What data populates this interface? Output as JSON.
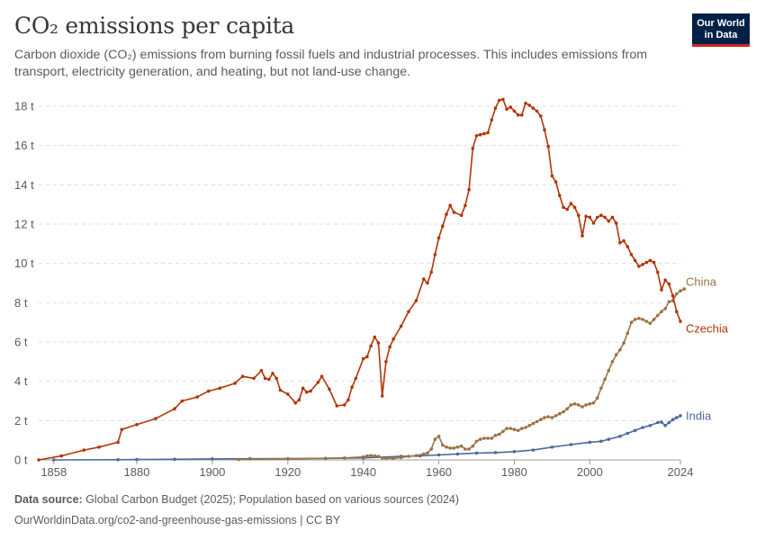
{
  "header": {
    "title": "CO₂ emissions per capita",
    "subtitle": "Carbon dioxide (CO₂) emissions from burning fossil fuels and industrial processes. This includes emissions from transport, electricity generation, and heating, but not land-use change.",
    "logo_line1": "Our World",
    "logo_line2": "in Data"
  },
  "footer": {
    "source_label": "Data source:",
    "source_text": " Global Carbon Budget (2025); Population based on various sources (2024)",
    "url_text": "OurWorldinData.org/co2-and-greenhouse-gas-emissions | CC BY"
  },
  "colors": {
    "czechia": "#b13507",
    "china": "#9a7445",
    "india": "#4c6a9c",
    "grid": "#dddddd",
    "brand": "#002147",
    "brand_accent": "#ce261e"
  },
  "chart_data": {
    "type": "line",
    "title": "CO₂ emissions per capita",
    "ylim": [
      0,
      18
    ],
    "xlim": [
      1854,
      2024
    ],
    "y_ticks": [
      0,
      2,
      4,
      6,
      8,
      10,
      12,
      14,
      16,
      18
    ],
    "y_tick_labels": [
      "0 t",
      "2 t",
      "4 t",
      "6 t",
      "8 t",
      "10 t",
      "12 t",
      "14 t",
      "16 t",
      "18 t"
    ],
    "x_ticks": [
      1858,
      1880,
      1900,
      1920,
      1940,
      1960,
      1980,
      2000,
      2024
    ],
    "x_tick_labels": [
      "1858",
      "1880",
      "1900",
      "1920",
      "1940",
      "1960",
      "1980",
      "2000",
      "2024"
    ],
    "grid": "horizontal dashed",
    "series": [
      {
        "name": "Czechia",
        "color": "#b13507",
        "points": [
          [
            1854,
            0
          ],
          [
            1860,
            0.2
          ],
          [
            1866,
            0.5
          ],
          [
            1870,
            0.65
          ],
          [
            1875,
            0.9
          ],
          [
            1876,
            1.55
          ],
          [
            1880,
            1.8
          ],
          [
            1885,
            2.1
          ],
          [
            1890,
            2.6
          ],
          [
            1892,
            3.0
          ],
          [
            1896,
            3.2
          ],
          [
            1899,
            3.5
          ],
          [
            1902,
            3.65
          ],
          [
            1906,
            3.9
          ],
          [
            1908,
            4.25
          ],
          [
            1911,
            4.15
          ],
          [
            1913,
            4.55
          ],
          [
            1914,
            4.15
          ],
          [
            1915,
            4.1
          ],
          [
            1916,
            4.4
          ],
          [
            1917,
            4.15
          ],
          [
            1918,
            3.55
          ],
          [
            1920,
            3.35
          ],
          [
            1922,
            2.9
          ],
          [
            1923,
            3.05
          ],
          [
            1924,
            3.65
          ],
          [
            1925,
            3.45
          ],
          [
            1926,
            3.5
          ],
          [
            1928,
            3.95
          ],
          [
            1929,
            4.25
          ],
          [
            1931,
            3.6
          ],
          [
            1933,
            2.75
          ],
          [
            1935,
            2.8
          ],
          [
            1936,
            3.05
          ],
          [
            1937,
            3.7
          ],
          [
            1938,
            4.15
          ],
          [
            1940,
            5.15
          ],
          [
            1941,
            5.25
          ],
          [
            1942,
            5.8
          ],
          [
            1943,
            6.25
          ],
          [
            1944,
            5.95
          ],
          [
            1945,
            3.25
          ],
          [
            1946,
            5.0
          ],
          [
            1947,
            5.75
          ],
          [
            1948,
            6.15
          ],
          [
            1950,
            6.8
          ],
          [
            1952,
            7.55
          ],
          [
            1954,
            8.1
          ],
          [
            1956,
            9.2
          ],
          [
            1957,
            9.0
          ],
          [
            1958,
            9.55
          ],
          [
            1959,
            10.45
          ],
          [
            1960,
            11.3
          ],
          [
            1961,
            11.9
          ],
          [
            1962,
            12.5
          ],
          [
            1963,
            12.95
          ],
          [
            1964,
            12.6
          ],
          [
            1966,
            12.45
          ],
          [
            1967,
            12.95
          ],
          [
            1968,
            13.75
          ],
          [
            1969,
            15.85
          ],
          [
            1970,
            16.5
          ],
          [
            1971,
            16.55
          ],
          [
            1972,
            16.6
          ],
          [
            1973,
            16.65
          ],
          [
            1974,
            17.3
          ],
          [
            1975,
            17.9
          ],
          [
            1976,
            18.3
          ],
          [
            1977,
            18.35
          ],
          [
            1978,
            17.85
          ],
          [
            1979,
            17.95
          ],
          [
            1980,
            17.75
          ],
          [
            1981,
            17.55
          ],
          [
            1982,
            17.55
          ],
          [
            1983,
            18.15
          ],
          [
            1984,
            18.05
          ],
          [
            1985,
            17.9
          ],
          [
            1986,
            17.75
          ],
          [
            1987,
            17.5
          ],
          [
            1988,
            16.8
          ],
          [
            1989,
            15.95
          ],
          [
            1990,
            14.45
          ],
          [
            1991,
            14.15
          ],
          [
            1992,
            13.45
          ],
          [
            1993,
            12.85
          ],
          [
            1994,
            12.75
          ],
          [
            1995,
            13.05
          ],
          [
            1996,
            12.85
          ],
          [
            1997,
            12.45
          ],
          [
            1998,
            11.4
          ],
          [
            1999,
            12.4
          ],
          [
            2000,
            12.35
          ],
          [
            2001,
            12.05
          ],
          [
            2002,
            12.35
          ],
          [
            2003,
            12.45
          ],
          [
            2004,
            12.35
          ],
          [
            2005,
            12.15
          ],
          [
            2006,
            12.35
          ],
          [
            2007,
            12.05
          ],
          [
            2008,
            11.05
          ],
          [
            2009,
            11.15
          ],
          [
            2010,
            10.85
          ],
          [
            2011,
            10.45
          ],
          [
            2012,
            10.15
          ],
          [
            2013,
            9.85
          ],
          [
            2014,
            9.95
          ],
          [
            2015,
            10.05
          ],
          [
            2016,
            10.15
          ],
          [
            2017,
            10.05
          ],
          [
            2018,
            9.55
          ],
          [
            2019,
            8.65
          ],
          [
            2020,
            9.15
          ],
          [
            2021,
            8.95
          ],
          [
            2022,
            8.35
          ],
          [
            2023,
            7.55
          ],
          [
            2024,
            7.05
          ]
        ]
      },
      {
        "name": "China",
        "color": "#9a7445",
        "points": [
          [
            1907,
            0.02
          ],
          [
            1920,
            0.05
          ],
          [
            1935,
            0.1
          ],
          [
            1940,
            0.15
          ],
          [
            1941,
            0.2
          ],
          [
            1942,
            0.22
          ],
          [
            1943,
            0.2
          ],
          [
            1944,
            0.18
          ],
          [
            1945,
            0.1
          ],
          [
            1946,
            0.08
          ],
          [
            1948,
            0.08
          ],
          [
            1950,
            0.12
          ],
          [
            1952,
            0.18
          ],
          [
            1954,
            0.22
          ],
          [
            1956,
            0.3
          ],
          [
            1957,
            0.35
          ],
          [
            1958,
            0.55
          ],
          [
            1959,
            1.05
          ],
          [
            1960,
            1.2
          ],
          [
            1961,
            0.75
          ],
          [
            1962,
            0.65
          ],
          [
            1963,
            0.6
          ],
          [
            1964,
            0.6
          ],
          [
            1965,
            0.65
          ],
          [
            1966,
            0.7
          ],
          [
            1967,
            0.55
          ],
          [
            1968,
            0.55
          ],
          [
            1969,
            0.7
          ],
          [
            1970,
            0.95
          ],
          [
            1971,
            1.05
          ],
          [
            1972,
            1.1
          ],
          [
            1973,
            1.1
          ],
          [
            1974,
            1.1
          ],
          [
            1975,
            1.25
          ],
          [
            1976,
            1.3
          ],
          [
            1977,
            1.45
          ],
          [
            1978,
            1.6
          ],
          [
            1979,
            1.6
          ],
          [
            1980,
            1.55
          ],
          [
            1981,
            1.5
          ],
          [
            1982,
            1.6
          ],
          [
            1983,
            1.65
          ],
          [
            1984,
            1.75
          ],
          [
            1985,
            1.85
          ],
          [
            1986,
            1.95
          ],
          [
            1987,
            2.05
          ],
          [
            1988,
            2.15
          ],
          [
            1989,
            2.2
          ],
          [
            1990,
            2.15
          ],
          [
            1991,
            2.25
          ],
          [
            1992,
            2.35
          ],
          [
            1993,
            2.45
          ],
          [
            1994,
            2.6
          ],
          [
            1995,
            2.8
          ],
          [
            1996,
            2.85
          ],
          [
            1997,
            2.8
          ],
          [
            1998,
            2.7
          ],
          [
            1999,
            2.8
          ],
          [
            2000,
            2.85
          ],
          [
            2001,
            2.9
          ],
          [
            2002,
            3.15
          ],
          [
            2003,
            3.65
          ],
          [
            2004,
            4.1
          ],
          [
            2005,
            4.55
          ],
          [
            2006,
            5.0
          ],
          [
            2007,
            5.35
          ],
          [
            2008,
            5.6
          ],
          [
            2009,
            5.95
          ],
          [
            2010,
            6.45
          ],
          [
            2011,
            7.0
          ],
          [
            2012,
            7.15
          ],
          [
            2013,
            7.2
          ],
          [
            2014,
            7.15
          ],
          [
            2015,
            7.05
          ],
          [
            2016,
            6.95
          ],
          [
            2017,
            7.15
          ],
          [
            2018,
            7.35
          ],
          [
            2019,
            7.55
          ],
          [
            2020,
            7.7
          ],
          [
            2021,
            8.05
          ],
          [
            2022,
            8.1
          ],
          [
            2023,
            8.45
          ],
          [
            2024,
            8.6
          ],
          [
            2025,
            8.7
          ]
        ]
      },
      {
        "name": "India",
        "color": "#4c6a9c",
        "points": [
          [
            1858,
            0
          ],
          [
            1875,
            0.01
          ],
          [
            1880,
            0.02
          ],
          [
            1890,
            0.03
          ],
          [
            1900,
            0.05
          ],
          [
            1910,
            0.06
          ],
          [
            1920,
            0.07
          ],
          [
            1930,
            0.08
          ],
          [
            1940,
            0.1
          ],
          [
            1950,
            0.18
          ],
          [
            1955,
            0.2
          ],
          [
            1960,
            0.25
          ],
          [
            1965,
            0.3
          ],
          [
            1970,
            0.35
          ],
          [
            1975,
            0.37
          ],
          [
            1980,
            0.42
          ],
          [
            1985,
            0.5
          ],
          [
            1990,
            0.65
          ],
          [
            1995,
            0.78
          ],
          [
            2000,
            0.9
          ],
          [
            2003,
            0.95
          ],
          [
            2005,
            1.05
          ],
          [
            2008,
            1.2
          ],
          [
            2010,
            1.35
          ],
          [
            2012,
            1.5
          ],
          [
            2014,
            1.65
          ],
          [
            2016,
            1.75
          ],
          [
            2018,
            1.9
          ],
          [
            2019,
            1.92
          ],
          [
            2020,
            1.75
          ],
          [
            2021,
            1.9
          ],
          [
            2022,
            2.05
          ],
          [
            2023,
            2.15
          ],
          [
            2024,
            2.25
          ]
        ]
      }
    ]
  }
}
